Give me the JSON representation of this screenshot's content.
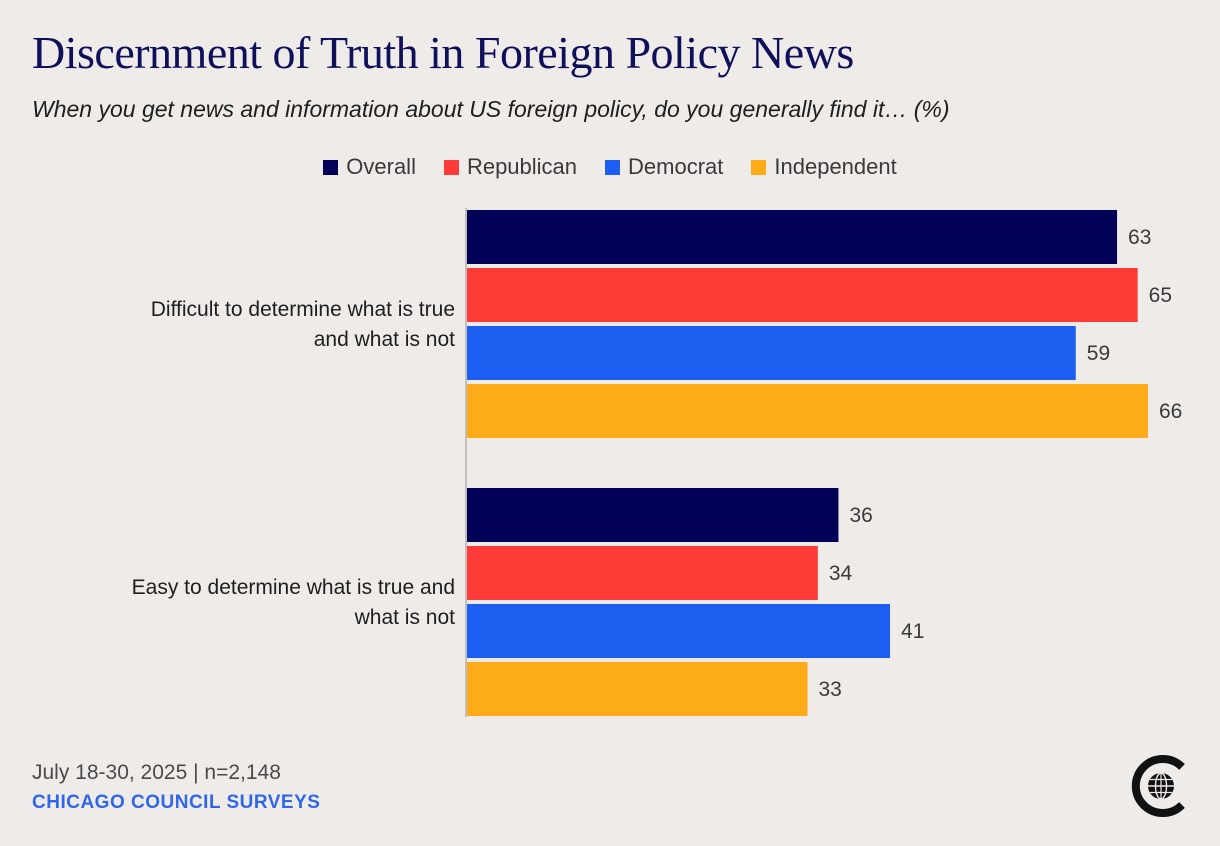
{
  "chart_data": {
    "type": "bar",
    "orientation": "horizontal",
    "title": "Discernment of Truth in Foreign Policy News",
    "subtitle": "When you get news and information about US foreign policy, do you generally find it… (%)",
    "categories": [
      [
        "Difficult to determine what is true",
        "and what is not"
      ],
      [
        "Easy to determine what is true and",
        "what is not"
      ]
    ],
    "series": [
      {
        "name": "Overall",
        "color": "#020057",
        "values": [
          63,
          36
        ]
      },
      {
        "name": "Republican",
        "color": "#ff3b37",
        "values": [
          65,
          34
        ]
      },
      {
        "name": "Democrat",
        "color": "#1b5ef0",
        "values": [
          59,
          41
        ]
      },
      {
        "name": "Independent",
        "color": "#fdab18",
        "values": [
          66,
          33
        ]
      }
    ],
    "xlim": [
      0,
      70
    ],
    "legend": "top-center",
    "grid": false
  },
  "footer": {
    "date": "July 18-30, 2025 | n=2,148",
    "source": "CHICAGO COUNCIL SURVEYS"
  }
}
